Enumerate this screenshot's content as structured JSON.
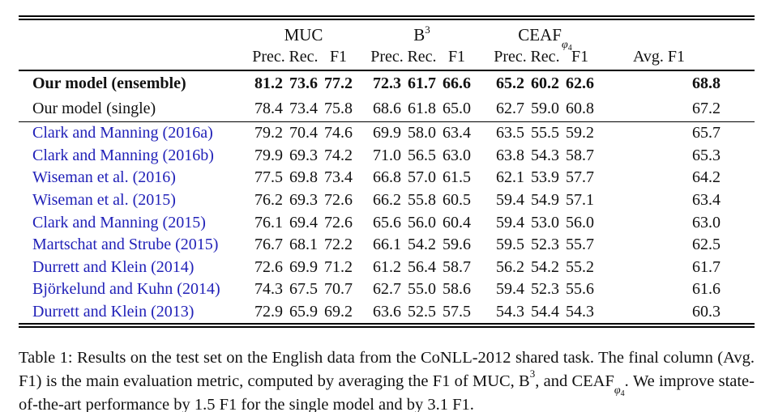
{
  "colors": {
    "link_blue": "#2121b8",
    "text": "#111111",
    "rule": "#000000",
    "background": "#ffffff"
  },
  "table": {
    "header": {
      "muc": "MUC",
      "b3_base": "B",
      "b3_sup": "3",
      "ceaf_base": "CEAF",
      "ceaf_sub_phi": "φ",
      "ceaf_sub_4": "4",
      "subheaders": [
        "Prec.",
        "Rec.",
        "F1"
      ],
      "avg_label": "Avg. F1"
    },
    "our_rows": [
      {
        "label": "Our model (ensemble)",
        "bold": true,
        "link": false,
        "values": [
          "81.2",
          "73.6",
          "77.2",
          "72.3",
          "61.7",
          "66.6",
          "65.2",
          "60.2",
          "62.6",
          "68.8"
        ]
      },
      {
        "label": "Our model (single)",
        "bold": false,
        "link": false,
        "values": [
          "78.4",
          "73.4",
          "75.8",
          "68.6",
          "61.8",
          "65.0",
          "62.7",
          "59.0",
          "60.8",
          "67.2"
        ]
      }
    ],
    "prior_rows": [
      {
        "label": "Clark and Manning (2016a)",
        "bold": false,
        "link": true,
        "values": [
          "79.2",
          "70.4",
          "74.6",
          "69.9",
          "58.0",
          "63.4",
          "63.5",
          "55.5",
          "59.2",
          "65.7"
        ]
      },
      {
        "label": "Clark and Manning (2016b)",
        "bold": false,
        "link": true,
        "values": [
          "79.9",
          "69.3",
          "74.2",
          "71.0",
          "56.5",
          "63.0",
          "63.8",
          "54.3",
          "58.7",
          "65.3"
        ]
      },
      {
        "label": "Wiseman et al. (2016)",
        "bold": false,
        "link": true,
        "values": [
          "77.5",
          "69.8",
          "73.4",
          "66.8",
          "57.0",
          "61.5",
          "62.1",
          "53.9",
          "57.7",
          "64.2"
        ]
      },
      {
        "label": "Wiseman et al. (2015)",
        "bold": false,
        "link": true,
        "values": [
          "76.2",
          "69.3",
          "72.6",
          "66.2",
          "55.8",
          "60.5",
          "59.4",
          "54.9",
          "57.1",
          "63.4"
        ]
      },
      {
        "label": "Clark and Manning (2015)",
        "bold": false,
        "link": true,
        "values": [
          "76.1",
          "69.4",
          "72.6",
          "65.6",
          "56.0",
          "60.4",
          "59.4",
          "53.0",
          "56.0",
          "63.0"
        ]
      },
      {
        "label": "Martschat and Strube (2015)",
        "bold": false,
        "link": true,
        "values": [
          "76.7",
          "68.1",
          "72.2",
          "66.1",
          "54.2",
          "59.6",
          "59.5",
          "52.3",
          "55.7",
          "62.5"
        ]
      },
      {
        "label": "Durrett and Klein (2014)",
        "bold": false,
        "link": true,
        "values": [
          "72.6",
          "69.9",
          "71.2",
          "61.2",
          "56.4",
          "58.7",
          "56.2",
          "54.2",
          "55.2",
          "61.7"
        ]
      },
      {
        "label": "Björkelund and Kuhn (2014)",
        "bold": false,
        "link": true,
        "values": [
          "74.3",
          "67.5",
          "70.7",
          "62.7",
          "55.0",
          "58.6",
          "59.4",
          "52.3",
          "55.6",
          "61.6"
        ]
      },
      {
        "label": "Durrett and Klein (2013)",
        "bold": false,
        "link": true,
        "values": [
          "72.9",
          "65.9",
          "69.2",
          "63.6",
          "52.5",
          "57.5",
          "54.3",
          "54.4",
          "54.3",
          "60.3"
        ]
      }
    ]
  },
  "caption": {
    "p1": "Table 1: Results on the test set on the English data from the CoNLL-2012 shared task. The final column (Avg. F1) is the main evaluation metric, computed by averaging the F1 of MUC, B",
    "sup": "3",
    "p2": ", and CEAF",
    "sub_phi": "φ",
    "sub_4": "4",
    "p3": ". We improve state-of-the-art performance by 1.5 F1 for the single model and by 3.1 F1."
  }
}
